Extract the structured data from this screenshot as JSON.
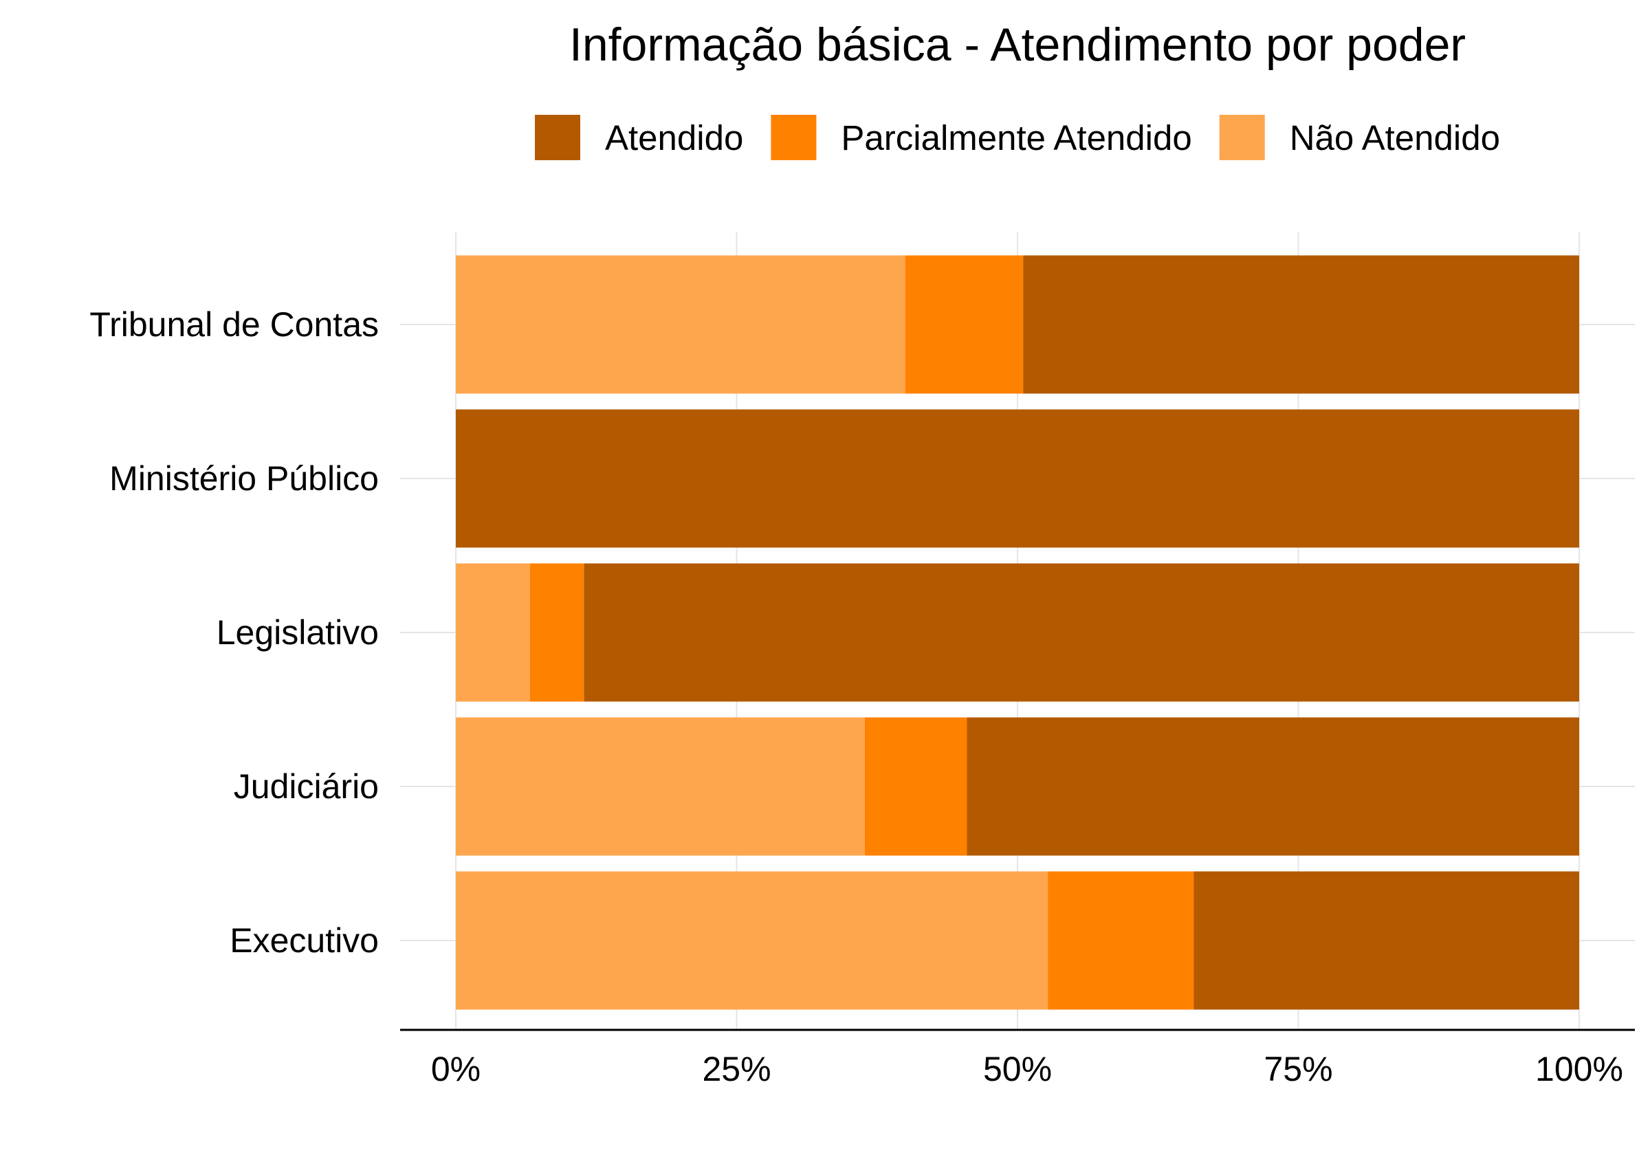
{
  "chart_data": {
    "type": "bar",
    "orientation": "horizontal",
    "stacked": true,
    "normalized": true,
    "title": "Informação básica - Atendimento por poder",
    "xlabel": "",
    "ylabel": "",
    "categories": [
      "Tribunal de Contas",
      "Ministério Público",
      "Legislativo",
      "Judiciário",
      "Executivo"
    ],
    "stack_order": [
      "Não Atendido",
      "Parcialmente Atendido",
      "Atendido"
    ],
    "legend_order": [
      "Atendido",
      "Parcialmente Atendido",
      "Não Atendido"
    ],
    "legend_position": "top",
    "series": [
      {
        "name": "Não Atendido",
        "color": "#FDA64D",
        "values": [
          40.0,
          0.0,
          6.6,
          36.4,
          52.7
        ]
      },
      {
        "name": "Parcialmente Atendido",
        "color": "#FF8100",
        "values": [
          10.5,
          0.0,
          4.8,
          9.1,
          13.0
        ]
      },
      {
        "name": "Atendido",
        "color": "#B35A00",
        "values": [
          49.5,
          100.0,
          88.6,
          54.5,
          34.3
        ]
      }
    ],
    "xlim": [
      0,
      100
    ],
    "xticks": [
      0,
      25,
      50,
      75,
      100
    ],
    "xtick_labels": [
      "0%",
      "25%",
      "50%",
      "75%",
      "100%"
    ],
    "grid": true
  }
}
